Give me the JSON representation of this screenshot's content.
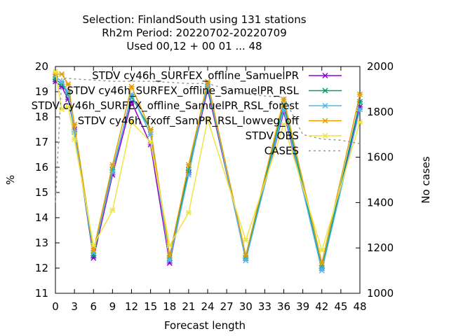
{
  "chart_data": {
    "type": "line",
    "title_lines": [
      "Selection: FinlandSouth using   131 stations",
      "Rh2m   Period: 20220702-20220709",
      "Used  00,12  + 00 01 ... 48"
    ],
    "xlabel": "Forecast length",
    "ylabel": "%",
    "y2label": "No cases",
    "xlim": [
      0,
      48
    ],
    "ylim": [
      11,
      20
    ],
    "y2lim": [
      1000,
      2000
    ],
    "x_ticks": [
      0,
      3,
      6,
      9,
      12,
      15,
      18,
      21,
      24,
      27,
      30,
      33,
      36,
      39,
      42,
      45,
      48
    ],
    "y_ticks": [
      11,
      12,
      13,
      14,
      15,
      16,
      17,
      18,
      19,
      20
    ],
    "y2_ticks": [
      1000,
      1200,
      1400,
      1600,
      1800,
      2000
    ],
    "grid": false,
    "legend_position": "top-right",
    "series": [
      {
        "name": "STDV cy46h_SURFEX_offline_SamuelPR",
        "color": "#9400d3",
        "marker": "x",
        "x": [
          0,
          1,
          2,
          3,
          6,
          9,
          12,
          15,
          18,
          21,
          24,
          30,
          36,
          42,
          48
        ],
        "values": [
          19.4,
          19.2,
          18.7,
          17.5,
          12.4,
          15.7,
          18.6,
          16.9,
          12.2,
          15.8,
          19.1,
          12.4,
          18.2,
          12.0,
          18.4
        ]
      },
      {
        "name": "STDV cy46h_SURFEX_offline_SamuelPR_RSL",
        "color": "#009e73",
        "marker": "x",
        "x": [
          0,
          1,
          2,
          3,
          6,
          9,
          12,
          15,
          18,
          21,
          24,
          30,
          36,
          42,
          48
        ],
        "values": [
          19.5,
          19.3,
          18.9,
          17.4,
          12.5,
          15.9,
          18.8,
          17.5,
          12.4,
          15.9,
          19.2,
          12.4,
          18.5,
          12.0,
          18.6
        ]
      },
      {
        "name": "STDV cy46h_SURFEX_offline_SamuelPR_RSL_forest",
        "color": "#56b4e9",
        "marker": "x",
        "x": [
          0,
          1,
          2,
          3,
          6,
          9,
          12,
          15,
          18,
          21,
          24,
          30,
          36,
          42,
          48
        ],
        "values": [
          19.6,
          19.4,
          19.0,
          17.4,
          12.6,
          15.8,
          18.9,
          17.3,
          12.3,
          15.7,
          19.3,
          12.3,
          18.3,
          11.9,
          18.3
        ]
      },
      {
        "name": "STDV cy46h_fxoff_SamPR_RSL_lowveg_off",
        "color": "#e69f00",
        "marker": "x",
        "x": [
          0,
          1,
          2,
          3,
          6,
          9,
          12,
          15,
          18,
          21,
          24,
          30,
          36,
          42,
          48
        ],
        "values": [
          19.7,
          19.7,
          19.3,
          17.7,
          12.7,
          16.1,
          19.2,
          17.5,
          12.5,
          16.1,
          19.4,
          12.5,
          18.7,
          12.2,
          18.9
        ]
      },
      {
        "name": "STDV OBS",
        "color": "#f0e442",
        "marker": "x",
        "x": [
          0,
          1,
          2,
          3,
          6,
          9,
          12,
          15,
          18,
          21,
          24,
          30,
          36,
          42,
          48
        ],
        "values": [
          19.8,
          18.3,
          18.4,
          17.1,
          12.9,
          14.3,
          17.8,
          17.0,
          12.9,
          14.2,
          17.9,
          13.1,
          17.7,
          12.7,
          17.8
        ]
      },
      {
        "name": "CASES",
        "color": "#999999",
        "dashed": true,
        "axis": "y2",
        "x": [
          0,
          1,
          3,
          6,
          9,
          12,
          15,
          18,
          21,
          24,
          27,
          30,
          33,
          36,
          39,
          42,
          45,
          48
        ],
        "values": [
          1400,
          1950,
          1945,
          1940,
          1935,
          1935,
          1935,
          1930,
          1925,
          1925,
          1900,
          1880,
          1870,
          1865,
          1700,
          1680,
          1675,
          1660
        ]
      }
    ]
  }
}
